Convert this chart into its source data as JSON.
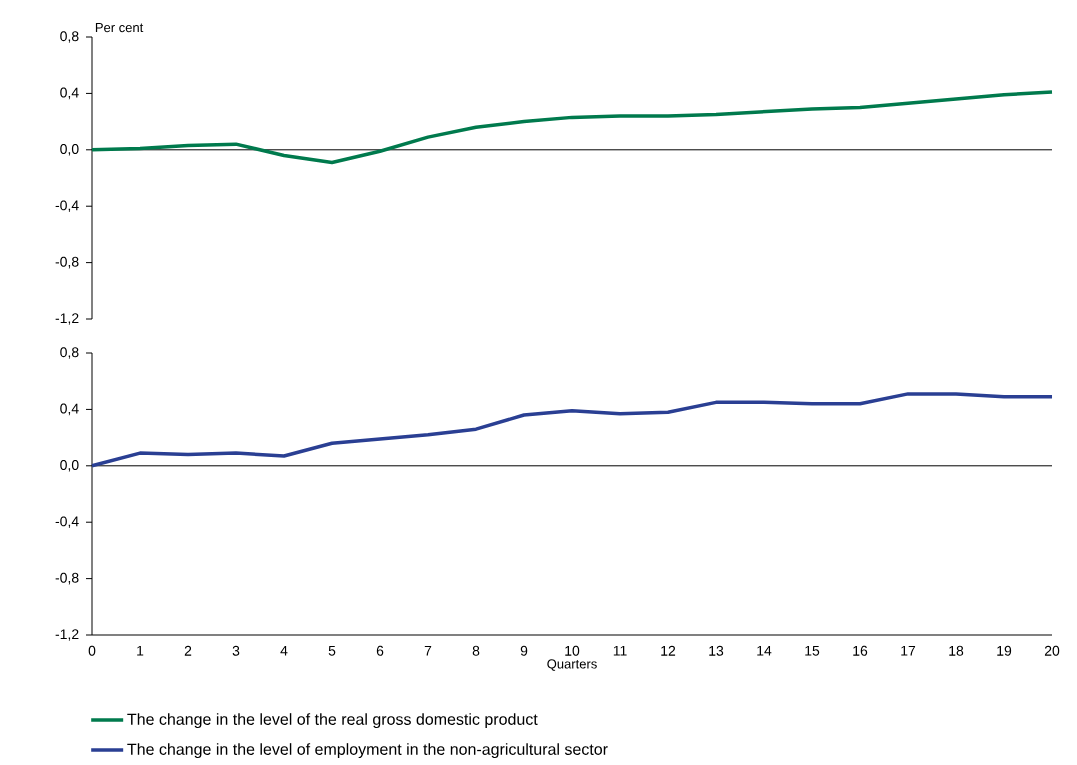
{
  "chart_data": [
    {
      "type": "line",
      "ylabel": "Per cent",
      "categories": [
        "0",
        "1",
        "2",
        "3",
        "4",
        "5",
        "6",
        "7",
        "8",
        "9",
        "10",
        "11",
        "12",
        "13",
        "14",
        "15",
        "16",
        "17",
        "18",
        "19",
        "20"
      ],
      "tick_labels": "y",
      "legend": "bottom",
      "ylim": [
        -1.2,
        0.8
      ],
      "yticks": [
        {
          "value": -1.2,
          "label": "-1,2"
        },
        {
          "value": -0.8,
          "label": "-0,8"
        },
        {
          "value": -0.4,
          "label": "-0,4"
        },
        {
          "value": 0,
          "label": "0,0"
        },
        {
          "value": 0.4,
          "label": "0,4"
        },
        {
          "value": 0.8,
          "label": "0,8"
        }
      ],
      "ref_lines": [
        {
          "axis": "y",
          "value": 0,
          "color": "#000000"
        }
      ],
      "series": [
        {
          "name": "The change in the level of the real gross domestic product",
          "color": "#007a4d",
          "values": [
            0.0,
            0.01,
            0.03,
            0.04,
            -0.04,
            -0.09,
            -0.01,
            0.09,
            0.16,
            0.2,
            0.23,
            0.24,
            0.24,
            0.25,
            0.27,
            0.29,
            0.3,
            0.33,
            0.36,
            0.39,
            0.41
          ]
        }
      ]
    },
    {
      "type": "line",
      "xlabel": "Quarters",
      "categories": [
        "0",
        "1",
        "2",
        "3",
        "4",
        "5",
        "6",
        "7",
        "8",
        "9",
        "10",
        "11",
        "12",
        "13",
        "14",
        "15",
        "16",
        "17",
        "18",
        "19",
        "20"
      ],
      "legend": "bottom",
      "ylim": [
        -1.2,
        0.8
      ],
      "yticks": [
        {
          "value": -1.2,
          "label": "-1,2"
        },
        {
          "value": -0.8,
          "label": "-0,8"
        },
        {
          "value": -0.4,
          "label": "-0,4"
        },
        {
          "value": 0,
          "label": "0,0"
        },
        {
          "value": 0.4,
          "label": "0,4"
        },
        {
          "value": 0.8,
          "label": "0,8"
        }
      ],
      "ref_lines": [
        {
          "axis": "y",
          "value": 0,
          "color": "#000000"
        }
      ],
      "series": [
        {
          "name": "The change in the level of employment in the non-agricultural sector",
          "color": "#2a3f93",
          "values": [
            0.0,
            0.09,
            0.08,
            0.09,
            0.07,
            0.16,
            0.19,
            0.22,
            0.26,
            0.36,
            0.39,
            0.37,
            0.38,
            0.45,
            0.45,
            0.44,
            0.44,
            0.51,
            0.51,
            0.49,
            0.49
          ]
        }
      ]
    }
  ]
}
